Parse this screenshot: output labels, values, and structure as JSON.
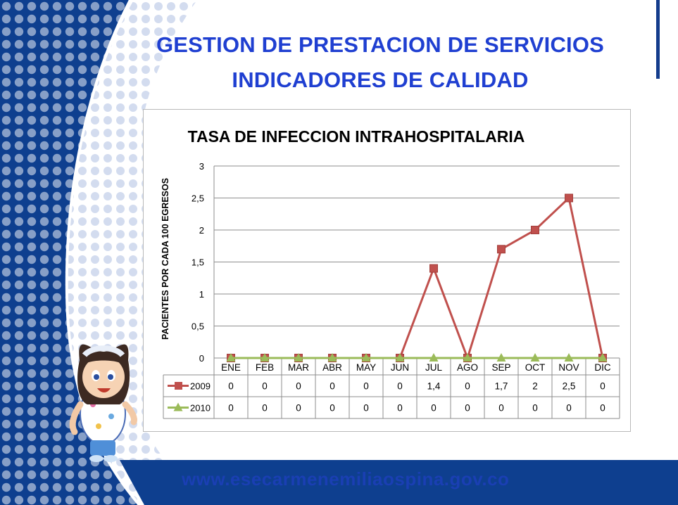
{
  "slide": {
    "title_line1": "GESTION DE PRESTACION DE SERVICIOS",
    "title_line2": "INDICADORES DE CALIDAD",
    "footer_url": "www.esecarmenemiliaospina.gov.co",
    "accent_color": "#1f3fd1",
    "panel_color": "#0e3f8f",
    "mascot": "cartoon-nurse-girl"
  },
  "chart_data": {
    "type": "line",
    "title": "TASA DE INFECCION INTRAHOSPITALARIA",
    "xlabel": "",
    "ylabel": "PACIENTES POR CADA 100 EGRESOS",
    "categories": [
      "ENE",
      "FEB",
      "MAR",
      "ABR",
      "MAY",
      "JUN",
      "JUL",
      "AGO",
      "SEP",
      "OCT",
      "NOV",
      "DIC"
    ],
    "ylim": [
      0,
      3
    ],
    "yticks": [
      "0",
      "0,5",
      "1",
      "1,5",
      "2",
      "2,5",
      "3"
    ],
    "grid": true,
    "legend": "data-table",
    "series": [
      {
        "name": "2009",
        "color": "#c0504d",
        "marker": "square",
        "values": [
          0,
          0,
          0,
          0,
          0,
          0,
          1.4,
          0,
          1.7,
          2,
          2.5,
          0
        ],
        "labels": [
          "0",
          "0",
          "0",
          "0",
          "0",
          "0",
          "1,4",
          "0",
          "1,7",
          "2",
          "2,5",
          "0"
        ]
      },
      {
        "name": "2010",
        "color": "#9bbb59",
        "marker": "triangle",
        "values": [
          0,
          0,
          0,
          0,
          0,
          0,
          0,
          0,
          0,
          0,
          0,
          0
        ],
        "labels": [
          "0",
          "0",
          "0",
          "0",
          "0",
          "0",
          "0",
          "0",
          "0",
          "0",
          "0",
          "0"
        ]
      }
    ]
  }
}
